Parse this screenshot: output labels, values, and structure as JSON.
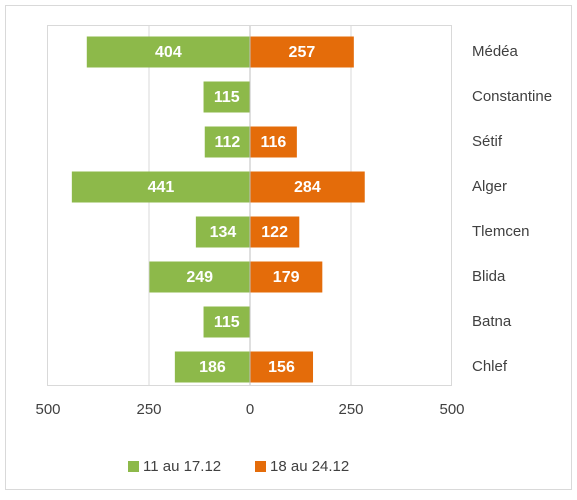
{
  "chart_data": {
    "type": "butterfly",
    "categories": [
      "Médéa",
      "Constantine",
      "Sétif",
      "Alger",
      "Tlemcen",
      "Blida",
      "Batna",
      "Chlef"
    ],
    "series": [
      {
        "name": "11 au 17.12",
        "color": "#8db94a",
        "values": [
          -404,
          -115,
          -112,
          -441,
          -134,
          -249,
          -115,
          -186
        ],
        "value_labels": [
          "404",
          "115",
          "112",
          "441",
          "134",
          "249",
          "115",
          "186"
        ]
      },
      {
        "name": "18 au 24.12",
        "color": "#e46c0a",
        "values": [
          257,
          null,
          116,
          284,
          122,
          179,
          null,
          156
        ]
      }
    ],
    "xlim": [
      -500,
      500
    ],
    "xticks": [
      {
        "value": -500,
        "label": "500"
      },
      {
        "value": -250,
        "label": "250"
      },
      0,
      250,
      500
    ],
    "grid": true,
    "legend": "bottom"
  }
}
